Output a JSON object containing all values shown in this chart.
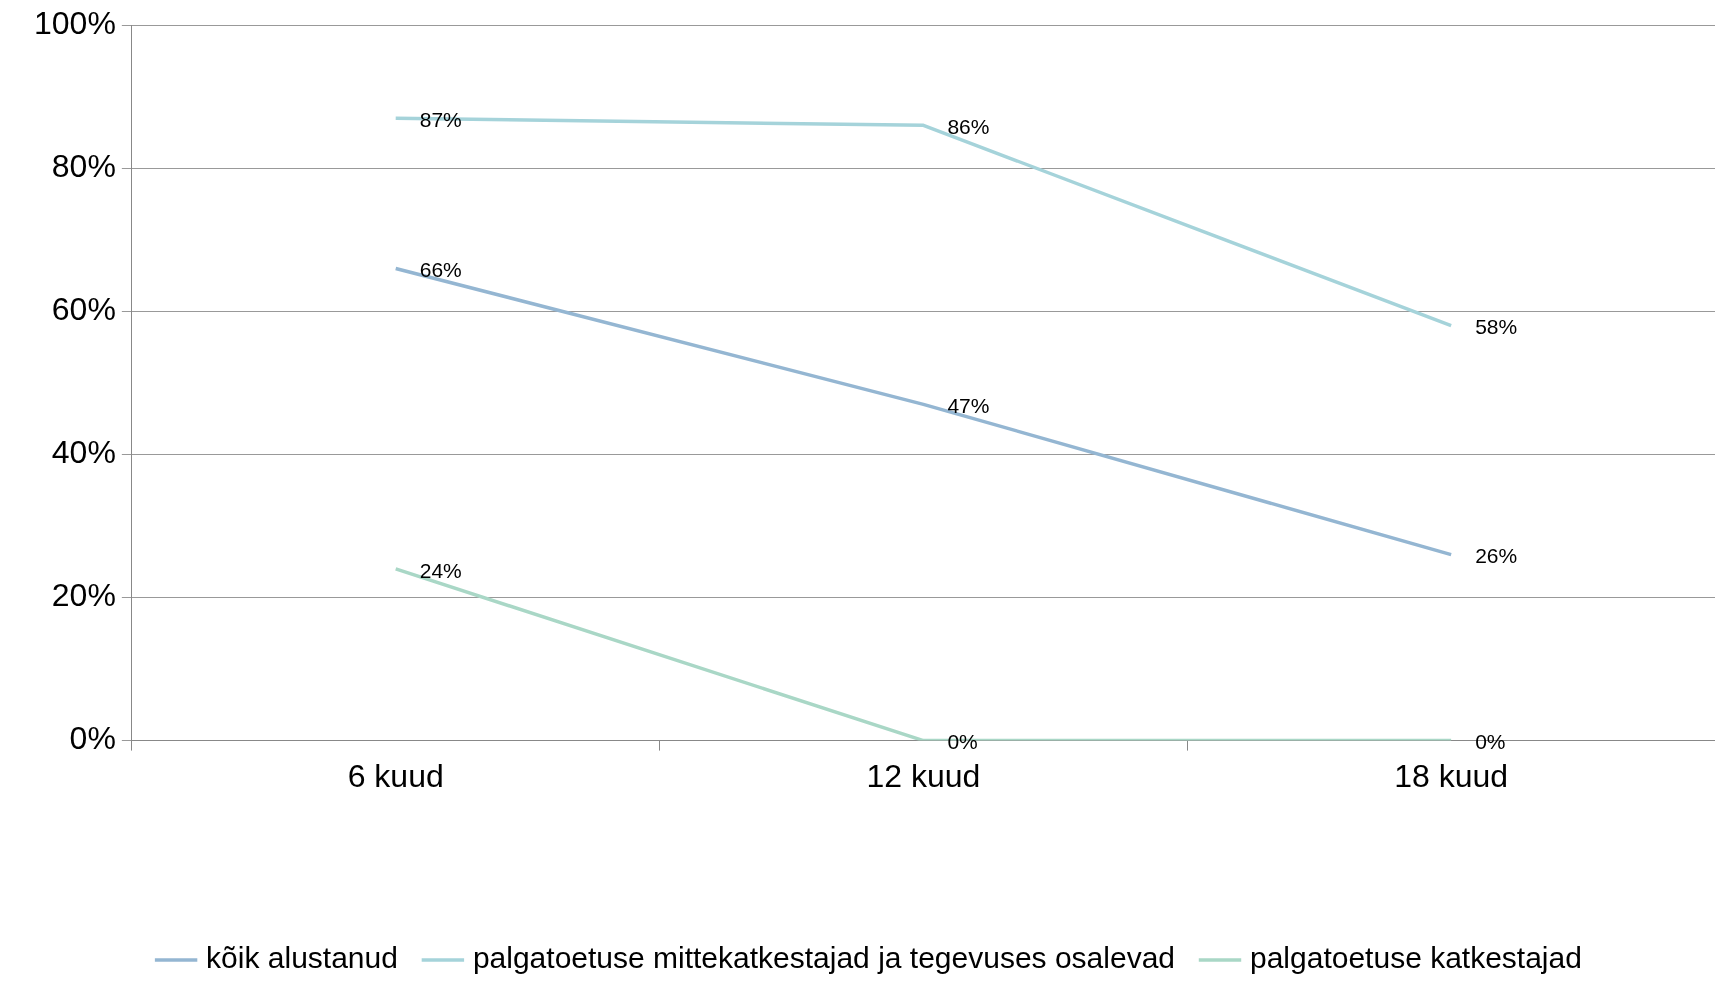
{
  "chart_data": {
    "type": "line",
    "categories": [
      "6 kuud",
      "12 kuud",
      "18 kuud"
    ],
    "series": [
      {
        "name": "kõik alustanud",
        "color": "#94b6d2",
        "values": [
          66,
          47,
          26
        ],
        "value_labels": [
          "66%",
          "47%",
          "26%"
        ]
      },
      {
        "name": "palgatoetuse mittekatkestajad ja tegevuses osalevad",
        "color": "#a5d3da",
        "values": [
          87,
          86,
          58
        ],
        "value_labels": [
          "87%",
          "86%",
          "58%"
        ]
      },
      {
        "name": "palgatoetuse katkestajad",
        "color": "#a9d7c6",
        "values": [
          24,
          0,
          0
        ],
        "value_labels": [
          "24%",
          "0%",
          "0%"
        ]
      }
    ],
    "ylim": [
      0,
      100
    ],
    "yticks": [
      {
        "value": 0,
        "label": "0%"
      },
      {
        "value": 20,
        "label": "20%"
      },
      {
        "value": 40,
        "label": "40%"
      },
      {
        "value": 60,
        "label": "60%"
      },
      {
        "value": 80,
        "label": "80%"
      },
      {
        "value": 100,
        "label": "100%"
      }
    ],
    "grid": "y",
    "legend": "bottom",
    "marker": "none",
    "line_style": "solid"
  }
}
